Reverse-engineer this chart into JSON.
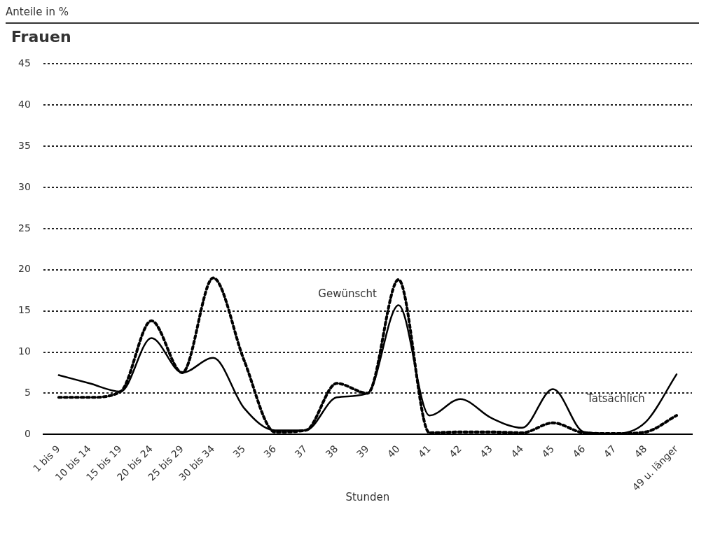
{
  "chart_data": {
    "type": "line",
    "title": "Frauen",
    "ylabel": "Anteile in %",
    "xlabel": "Stunden",
    "categories": [
      "1 bis 9",
      "10 bis 14",
      "15 bis 19",
      "20 bis 24",
      "25 bis 29",
      "30 bis 34",
      "35",
      "36",
      "37",
      "38",
      "39",
      "40",
      "41",
      "42",
      "43",
      "44",
      "45",
      "46",
      "47",
      "48",
      "49 u. länger"
    ],
    "series": [
      {
        "name": "Tatsächlich",
        "color": "#000000",
        "line_style": "solid",
        "values": [
          7.2,
          6.2,
          5.2,
          11.7,
          7.5,
          9.3,
          3.2,
          0.5,
          0.5,
          4.5,
          5.0,
          15.7,
          2.3,
          4.3,
          2.0,
          0.8,
          5.5,
          0.3,
          0.1,
          1.5,
          7.3
        ]
      },
      {
        "name": "Gewünscht",
        "color": "#000000",
        "line_style": "dotted",
        "values": [
          4.5,
          4.5,
          5.2,
          13.8,
          7.5,
          19.0,
          9.0,
          0.3,
          0.5,
          6.2,
          5.0,
          18.8,
          0.2,
          0.3,
          0.3,
          0.2,
          1.4,
          0.2,
          0.1,
          0.3,
          2.3
        ]
      }
    ],
    "ylim": [
      0,
      45
    ],
    "yticks": [
      0,
      5,
      10,
      15,
      20,
      25,
      30,
      35,
      40,
      45
    ],
    "grid": "y",
    "legend": false,
    "marker": "none"
  }
}
